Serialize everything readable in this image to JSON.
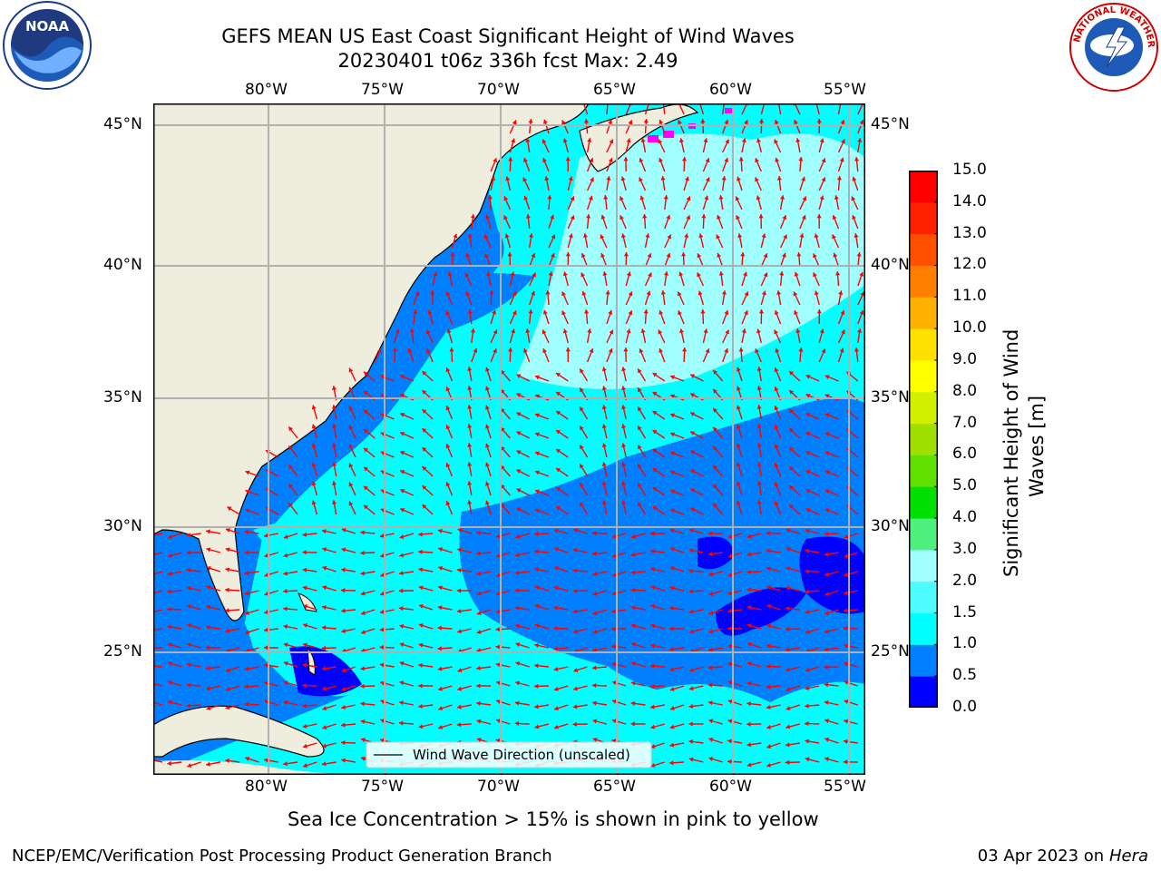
{
  "header": {
    "title_line1": "GEFS MEAN US East Coast Significant Height of Wind Waves",
    "title_line2": "20230401 t06z 336h fcst   Max: 2.49"
  },
  "logos": {
    "left": {
      "name": "noaa-logo",
      "text": "NOAA"
    },
    "right": {
      "name": "nws-logo",
      "text": "NATIONAL WEATHER SERVICE"
    }
  },
  "map": {
    "lon_labels": [
      "80°W",
      "75°W",
      "70°W",
      "65°W",
      "60°W",
      "55°W"
    ],
    "lat_labels": [
      "45°N",
      "40°N",
      "35°N",
      "30°N",
      "25°N"
    ],
    "legend_label": "Wind Wave Direction (unscaled)",
    "colors": {
      "land": "#efedde",
      "ocean_low": "#0000ff",
      "ocean_mid": "#0080ff",
      "ocean_cyan": "#00ffff",
      "ocean_light": "#a0ffff",
      "arrow": "#ff0000",
      "ice": "#ff00ff",
      "grid": "#b0b0b0"
    }
  },
  "colorbar": {
    "title_line1": "Significant Height of Wind",
    "title_line2": "Waves [m]",
    "ticks": [
      "0.0",
      "0.5",
      "1.0",
      "1.5",
      "2.0",
      "3.0",
      "4.0",
      "5.0",
      "6.0",
      "7.0",
      "8.0",
      "9.0",
      "10.0",
      "11.0",
      "12.0",
      "13.0",
      "14.0",
      "15.0"
    ],
    "colors": [
      "#0000ff",
      "#0080ff",
      "#00ffff",
      "#4dfcff",
      "#a0ffff",
      "#50f080",
      "#00e000",
      "#60e000",
      "#a0e000",
      "#d0f000",
      "#ffff00",
      "#ffe000",
      "#ffb000",
      "#ff8000",
      "#ff5000",
      "#ff2000",
      "#ff0000"
    ]
  },
  "note": "Sea Ice Concentration > 15% is shown in pink to yellow",
  "footer": {
    "left": "NCEP/EMC/Verification Post Processing Product Generation Branch",
    "right_prefix": "03 Apr 2023 on ",
    "right_machine": "Hera"
  }
}
